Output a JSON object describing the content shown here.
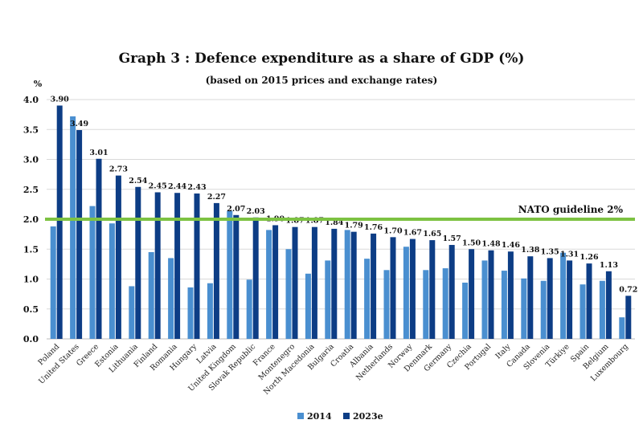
{
  "chart_data": {
    "type": "bar",
    "title": "Graph 3 : Defence expenditure as a share of GDP (%)",
    "subtitle": "(based on 2015 prices and exchange rates)",
    "ylabel": "%",
    "ylim": [
      0,
      4.0
    ],
    "yticks": [
      "0.0",
      "0.5",
      "1.0",
      "1.5",
      "2.0",
      "2.5",
      "3.0",
      "3.5",
      "4.0"
    ],
    "grid": true,
    "legend_position": "bottom",
    "categories": [
      "Poland",
      "United States",
      "Greece",
      "Estonia",
      "Lithuania",
      "Finland",
      "Romania",
      "Hungary",
      "Latvia",
      "United Kingdom",
      "Slovak Republic",
      "France",
      "Montenegro",
      "North Macedonia",
      "Bulgaria",
      "Croatia",
      "Albania",
      "Netherlands",
      "Norway",
      "Denmark",
      "Germany",
      "Czechia",
      "Portugal",
      "Italy",
      "Canada",
      "Slovenia",
      "Türkiye",
      "Spain",
      "Belgium",
      "Luxembourg"
    ],
    "series": [
      {
        "name": "2014",
        "color": "#4a8fd0",
        "values": [
          1.88,
          3.72,
          2.22,
          1.93,
          0.88,
          1.45,
          1.35,
          0.86,
          0.93,
          2.14,
          0.99,
          1.82,
          1.5,
          1.09,
          1.31,
          1.82,
          1.34,
          1.15,
          1.54,
          1.15,
          1.18,
          0.94,
          1.31,
          1.14,
          1.01,
          0.97,
          1.44,
          0.91,
          0.97,
          0.36
        ]
      },
      {
        "name": "2023e",
        "color": "#0d3d85",
        "values": [
          3.9,
          3.49,
          3.01,
          2.73,
          2.54,
          2.45,
          2.44,
          2.43,
          2.27,
          2.07,
          2.03,
          1.9,
          1.87,
          1.87,
          1.84,
          1.79,
          1.76,
          1.7,
          1.67,
          1.65,
          1.57,
          1.5,
          1.48,
          1.46,
          1.38,
          1.35,
          1.31,
          1.26,
          1.13,
          0.72
        ],
        "labels": [
          "3.90",
          "3.49",
          "3.01",
          "2.73",
          "2.54",
          "2.45",
          "2.44",
          "2.43",
          "2.27",
          "2.07",
          "2.03",
          "1.90",
          "1.87",
          "1.87",
          "1.84",
          "1.79",
          "1.76",
          "1.70",
          "1.67",
          "1.65",
          "1.57",
          "1.50",
          "1.48",
          "1.46",
          "1.38",
          "1.35",
          "1.31",
          "1.26",
          "1.13",
          "0.72"
        ]
      }
    ],
    "reference_line": {
      "value": 2.0,
      "label": "NATO guideline 2%",
      "color": "#7dc242"
    }
  }
}
